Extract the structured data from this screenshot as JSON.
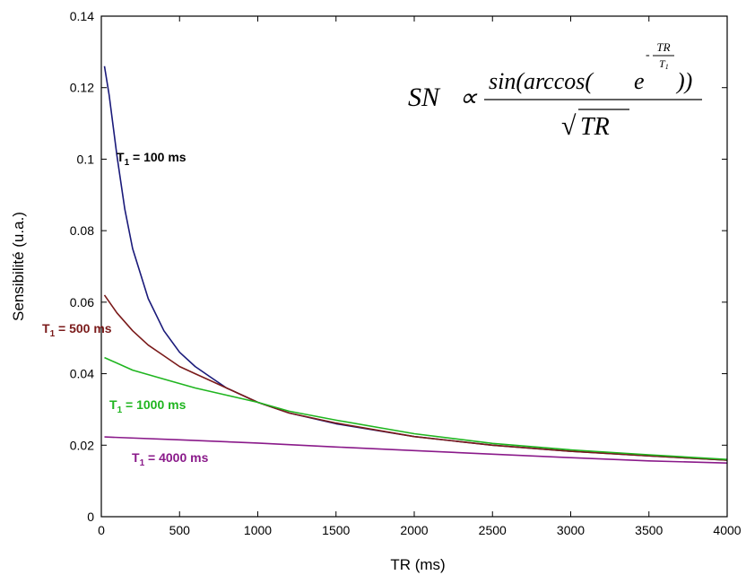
{
  "chart_data": {
    "type": "line",
    "title": "",
    "xlabel": "TR (ms)",
    "ylabel": "Sensibilité (u.a.)",
    "xlim": [
      0,
      4000
    ],
    "ylim": [
      0,
      0.14
    ],
    "xticks": [
      0,
      500,
      1000,
      1500,
      2000,
      2500,
      3000,
      3500,
      4000
    ],
    "yticks": [
      0,
      0.02,
      0.04,
      0.06,
      0.08,
      0.1,
      0.12,
      0.14
    ],
    "xtick_labels": [
      "0",
      "500",
      "1000",
      "1500",
      "2000",
      "2500",
      "3000",
      "3500",
      "4000"
    ],
    "ytick_labels": [
      "0",
      "0.02",
      "0.04",
      "0.06",
      "0.08",
      "0.1",
      "0.12",
      "0.14"
    ],
    "grid": false,
    "formula": {
      "lhs": "SN",
      "relation": "∝",
      "numerator_pre": "sin(arccos(",
      "base": "e",
      "exp_sign": "-",
      "exp_num": "TR",
      "exp_den_main": "T",
      "exp_den_sub": "1",
      "numerator_post": "))",
      "sqrt_sym": "√",
      "denominator": "TR"
    },
    "series": [
      {
        "label_main": "T",
        "label_sub": "1",
        "label_rest": "= 100 ms",
        "color": "#1a1a7a",
        "x": [
          20,
          50,
          100,
          150,
          200,
          300,
          400,
          500,
          600,
          700,
          800,
          1000,
          1200,
          1500,
          2000,
          2500,
          3000,
          3500,
          4000
        ],
        "y": [
          0.126,
          0.118,
          0.101,
          0.086,
          0.075,
          0.061,
          0.052,
          0.046,
          0.042,
          0.039,
          0.036,
          0.032,
          0.029,
          0.026,
          0.0224,
          0.02,
          0.0183,
          0.017,
          0.0158
        ]
      },
      {
        "label_main": "T",
        "label_sub": "1",
        "label_rest": "= 500 ms",
        "color": "#7a1a1a",
        "x": [
          20,
          100,
          200,
          300,
          400,
          500,
          600,
          700,
          800,
          1000,
          1200,
          1500,
          2000,
          2500,
          3000,
          3500,
          4000
        ],
        "y": [
          0.062,
          0.057,
          0.052,
          0.048,
          0.045,
          0.042,
          0.04,
          0.038,
          0.036,
          0.032,
          0.029,
          0.0262,
          0.0224,
          0.02,
          0.0183,
          0.017,
          0.0158
        ]
      },
      {
        "label_main": "T",
        "label_sub": "1",
        "label_rest": "= 1000 ms",
        "color": "#1fb51f",
        "x": [
          20,
          200,
          400,
          600,
          800,
          1000,
          1200,
          1500,
          2000,
          2500,
          3000,
          3500,
          4000
        ],
        "y": [
          0.0445,
          0.041,
          0.0385,
          0.036,
          0.034,
          0.032,
          0.0295,
          0.027,
          0.0232,
          0.0205,
          0.0187,
          0.0173,
          0.016
        ]
      },
      {
        "label_main": "T",
        "label_sub": "1",
        "label_rest": "= 4000 ms",
        "color": "#8a1a8a",
        "x": [
          20,
          500,
          1000,
          1500,
          2000,
          2500,
          3000,
          3500,
          4000
        ],
        "y": [
          0.0223,
          0.0215,
          0.0206,
          0.0195,
          0.0185,
          0.0175,
          0.0165,
          0.0156,
          0.015
        ]
      }
    ]
  }
}
